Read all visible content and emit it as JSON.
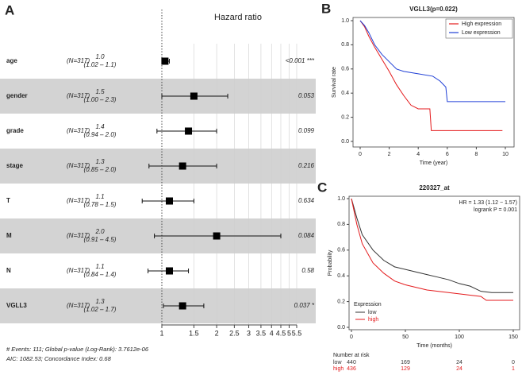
{
  "chart_data": [
    {
      "type": "forest",
      "panel_label": "A",
      "title": "Hazard ratio",
      "xscale": "log",
      "categories": [
        "age",
        "gender",
        "grade",
        "stage",
        "T",
        "M",
        "N",
        "VGLL3"
      ],
      "n_labels": [
        "(N=317)",
        "(N=317)",
        "(N=317)",
        "(N=317)",
        "(N=317)",
        "(N=317)",
        "(N=317)",
        "(N=317)"
      ],
      "values": [
        1.04,
        1.5,
        1.4,
        1.3,
        1.1,
        2.0,
        1.1,
        1.3
      ],
      "value_labels": [
        "1.0",
        "1.5",
        "1.4",
        "1.3",
        "1.1",
        "2.0",
        "1.1",
        "1.3"
      ],
      "ci_low": [
        1.02,
        1.0,
        0.94,
        0.85,
        0.78,
        0.91,
        0.84,
        1.02
      ],
      "ci_high": [
        1.1,
        2.3,
        2.0,
        2.0,
        1.5,
        4.5,
        1.4,
        1.7
      ],
      "ci_labels": [
        "(1.02 – 1.1)",
        "(1.00 – 2.3)",
        "(0.94 – 2.0)",
        "(0.85 – 2.0)",
        "(0.78 – 1.5)",
        "(0.91 – 4.5)",
        "(0.84 – 1.4)",
        "(1.02 – 1.7)"
      ],
      "p_labels": [
        "<0.001 ***",
        "0.053",
        "0.099",
        "0.216",
        "0.634",
        "0.084",
        "0.58",
        "0.037 *"
      ],
      "xlim": [
        1,
        5.5
      ],
      "xticks": [
        1,
        1.5,
        2,
        2.5,
        3,
        3.5,
        4,
        4.5,
        5,
        5.5
      ],
      "footnotes": [
        "# Events: 111; Global p-value (Log-Rank): 3.7612e-06",
        "AIC: 1082.53; Concordance Index: 0.68"
      ]
    },
    {
      "type": "line",
      "panel_label": "B",
      "title": "VGLL3(p=0.022)",
      "xlabel": "Time (year)",
      "ylabel": "Survival rate",
      "xlim": [
        0,
        10
      ],
      "xticks": [
        0,
        2,
        4,
        6,
        8,
        10
      ],
      "ylim": [
        0,
        1
      ],
      "yticks": [
        {
          "value": 0,
          "label": "0.0"
        },
        {
          "value": 0.2,
          "label": "0.2"
        },
        {
          "value": 0.4,
          "label": "0.4"
        },
        {
          "value": 0.6,
          "label": "0.6"
        },
        {
          "value": 0.8,
          "label": "0.8"
        },
        {
          "value": 1,
          "label": "1.0"
        }
      ],
      "legend": "top-right",
      "series": [
        {
          "name": "High expression",
          "color": "#e41a1c",
          "x": [
            0,
            0.3,
            0.6,
            1,
            1.5,
            2,
            2.5,
            3,
            3.5,
            4,
            4.8,
            4.9,
            9.8
          ],
          "values": [
            1,
            0.95,
            0.87,
            0.78,
            0.68,
            0.58,
            0.47,
            0.38,
            0.3,
            0.27,
            0.27,
            0.09,
            0.09
          ]
        },
        {
          "name": "Low expression",
          "color": "#1f3fd6",
          "x": [
            0,
            0.3,
            0.6,
            1,
            1.5,
            2,
            2.5,
            3,
            4,
            5,
            5.5,
            5.9,
            6,
            10
          ],
          "values": [
            1,
            0.96,
            0.9,
            0.8,
            0.72,
            0.66,
            0.6,
            0.58,
            0.56,
            0.54,
            0.5,
            0.45,
            0.33,
            0.33
          ]
        }
      ]
    },
    {
      "type": "line",
      "panel_label": "C",
      "title": "220327_at",
      "xlabel": "Time (months)",
      "ylabel": "Probability",
      "annotations": [
        "HR = 1.33 (1.12 − 1.57)",
        "logrank P = 0.001"
      ],
      "xlim": [
        0,
        150
      ],
      "xticks": [
        0,
        50,
        100,
        150
      ],
      "ylim": [
        0,
        1
      ],
      "yticks": [
        {
          "value": 0,
          "label": "0.0"
        },
        {
          "value": 0.2,
          "label": "0.2"
        },
        {
          "value": 0.4,
          "label": "0.4"
        },
        {
          "value": 0.6,
          "label": "0.6"
        },
        {
          "value": 0.8,
          "label": "0.8"
        },
        {
          "value": 1,
          "label": "1.0"
        }
      ],
      "legend": "bottom-left",
      "legend_title": "Expression",
      "series": [
        {
          "name": "low",
          "color": "#333333",
          "x": [
            0,
            5,
            10,
            20,
            30,
            40,
            50,
            60,
            70,
            80,
            90,
            100,
            110,
            120,
            130,
            150
          ],
          "values": [
            1,
            0.85,
            0.72,
            0.6,
            0.52,
            0.47,
            0.45,
            0.43,
            0.41,
            0.39,
            0.37,
            0.34,
            0.32,
            0.28,
            0.27,
            0.27
          ]
        },
        {
          "name": "high",
          "color": "#e41a1c",
          "x": [
            0,
            5,
            10,
            20,
            30,
            40,
            50,
            60,
            70,
            80,
            90,
            100,
            110,
            120,
            125,
            150
          ],
          "values": [
            1,
            0.8,
            0.65,
            0.5,
            0.42,
            0.36,
            0.33,
            0.31,
            0.29,
            0.28,
            0.27,
            0.26,
            0.25,
            0.24,
            0.21,
            0.21
          ]
        }
      ],
      "risk_title": "Number at risk",
      "risk": [
        [
          440,
          169,
          24,
          0
        ],
        [
          436,
          129,
          24,
          1
        ]
      ]
    }
  ]
}
